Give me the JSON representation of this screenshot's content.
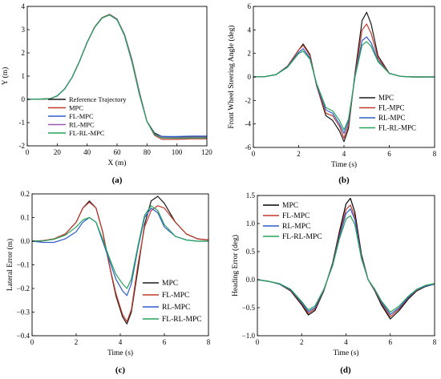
{
  "panels": [
    {
      "id": "a",
      "caption": "(a)",
      "chart_data": {
        "type": "line",
        "xlabel": "X (m)",
        "ylabel": "Y (m)",
        "xlim": [
          0,
          120
        ],
        "ylim": [
          -2,
          4
        ],
        "xticks": [
          0,
          20,
          40,
          60,
          80,
          100,
          120
        ],
        "yticks": [
          -2,
          -1,
          0,
          1,
          2,
          3,
          4
        ],
        "legend_position": "bottom-left",
        "series": [
          {
            "name": "Reference Trajectory",
            "color": "#1a1a1a",
            "x": [
              0,
              15,
              20,
              25,
              30,
              35,
              40,
              45,
              50,
              55,
              60,
              65,
              70,
              75,
              80,
              85,
              90,
              100,
              110,
              120
            ],
            "y": [
              0,
              0.02,
              0.15,
              0.45,
              0.95,
              1.65,
              2.45,
              3.1,
              3.5,
              3.65,
              3.45,
              2.75,
              1.6,
              0.2,
              -0.95,
              -1.45,
              -1.6,
              -1.62,
              -1.62,
              -1.62
            ]
          },
          {
            "name": "MPC",
            "color": "#c0392b",
            "x": [
              0,
              15,
              20,
              25,
              30,
              35,
              40,
              45,
              50,
              55,
              60,
              65,
              70,
              75,
              80,
              85,
              90,
              100,
              110,
              120
            ],
            "y": [
              0,
              0.02,
              0.15,
              0.45,
              0.95,
              1.65,
              2.45,
              3.12,
              3.52,
              3.66,
              3.45,
              2.8,
              1.7,
              0.3,
              -0.95,
              -1.55,
              -1.72,
              -1.72,
              -1.7,
              -1.7
            ]
          },
          {
            "name": "FL-MPC",
            "color": "#2e5cc9",
            "x": [
              0,
              15,
              20,
              25,
              30,
              35,
              40,
              45,
              50,
              55,
              60,
              65,
              70,
              75,
              80,
              85,
              90,
              100,
              110,
              120
            ],
            "y": [
              0,
              0.02,
              0.15,
              0.45,
              0.95,
              1.65,
              2.45,
              3.1,
              3.5,
              3.64,
              3.44,
              2.78,
              1.66,
              0.26,
              -0.95,
              -1.5,
              -1.6,
              -1.6,
              -1.58,
              -1.58
            ]
          },
          {
            "name": "RL-MPC",
            "color": "#9b59b6",
            "x": [
              0,
              15,
              20,
              25,
              30,
              35,
              40,
              45,
              50,
              55,
              60,
              65,
              70,
              75,
              80,
              85,
              90,
              100,
              110,
              120
            ],
            "y": [
              0,
              0.02,
              0.15,
              0.45,
              0.95,
              1.65,
              2.45,
              3.1,
              3.5,
              3.63,
              3.43,
              2.76,
              1.63,
              0.23,
              -0.95,
              -1.5,
              -1.63,
              -1.64,
              -1.63,
              -1.63
            ]
          },
          {
            "name": "FL-RL-MPC",
            "color": "#27a35a",
            "x": [
              0,
              15,
              20,
              25,
              30,
              35,
              40,
              45,
              50,
              55,
              60,
              65,
              70,
              75,
              80,
              85,
              90,
              100,
              110,
              120
            ],
            "y": [
              0,
              0.02,
              0.15,
              0.45,
              0.95,
              1.65,
              2.45,
              3.1,
              3.5,
              3.63,
              3.42,
              2.75,
              1.62,
              0.22,
              -0.95,
              -1.52,
              -1.66,
              -1.67,
              -1.66,
              -1.66
            ]
          }
        ]
      }
    },
    {
      "id": "b",
      "caption": "(b)",
      "chart_data": {
        "type": "line",
        "xlabel": "Time (s)",
        "ylabel": "Front Wheel Steering Angle (deg)",
        "xlim": [
          0,
          8
        ],
        "ylim": [
          -6,
          6
        ],
        "xticks": [
          0,
          2,
          4,
          6,
          8
        ],
        "yticks": [
          -6,
          -4,
          -2,
          0,
          2,
          4,
          6
        ],
        "legend_position": "bottom-right",
        "series": [
          {
            "name": "MPC",
            "color": "#1a1a1a",
            "x": [
              0,
              0.5,
              1,
              1.5,
              2,
              2.2,
              2.5,
              2.8,
              3.2,
              3.5,
              3.8,
              4,
              4.2,
              4.5,
              4.8,
              5,
              5.2,
              5.5,
              6,
              6.5,
              7,
              8
            ],
            "y": [
              0,
              0.02,
              0.2,
              0.9,
              2.3,
              2.8,
              1.9,
              -0.8,
              -3.3,
              -3.7,
              -4.6,
              -5.5,
              -4.4,
              0.5,
              4.8,
              5.5,
              4.5,
              1.8,
              0.3,
              0.05,
              0,
              0
            ]
          },
          {
            "name": "FL-MPC",
            "color": "#c0392b",
            "x": [
              0,
              0.5,
              1,
              1.5,
              2,
              2.2,
              2.5,
              2.8,
              3.2,
              3.5,
              3.8,
              4,
              4.2,
              4.5,
              4.8,
              5,
              5.2,
              5.5,
              6,
              6.5,
              7,
              8
            ],
            "y": [
              0,
              0.02,
              0.2,
              0.9,
              2.3,
              2.7,
              1.8,
              -0.8,
              -3.1,
              -3.3,
              -4.2,
              -5.2,
              -4.1,
              0.3,
              4.0,
              4.5,
              3.7,
              1.6,
              0.3,
              0.05,
              0,
              0
            ]
          },
          {
            "name": "RL-MPC",
            "color": "#2e5cc9",
            "x": [
              0,
              0.5,
              1,
              1.5,
              2,
              2.2,
              2.5,
              2.8,
              3.2,
              3.5,
              3.8,
              4,
              4.2,
              4.5,
              4.8,
              5,
              5.2,
              5.5,
              6,
              6.5,
              7,
              8
            ],
            "y": [
              0,
              0.02,
              0.2,
              0.85,
              2.1,
              2.4,
              1.6,
              -0.7,
              -2.8,
              -3.1,
              -4.0,
              -4.8,
              -3.8,
              0.2,
              3.1,
              3.4,
              2.9,
              1.4,
              0.3,
              0.05,
              0,
              0
            ]
          },
          {
            "name": "FL-RL-MPC",
            "color": "#27a35a",
            "x": [
              0,
              0.5,
              1,
              1.5,
              2,
              2.2,
              2.5,
              2.8,
              3.2,
              3.5,
              3.8,
              4,
              4.2,
              4.5,
              4.8,
              5,
              5.2,
              5.5,
              6,
              6.5,
              7,
              8
            ],
            "y": [
              0,
              0.02,
              0.2,
              0.8,
              2.0,
              2.2,
              1.5,
              -0.6,
              -2.6,
              -2.9,
              -3.7,
              -4.5,
              -3.6,
              0.1,
              2.7,
              3.0,
              2.6,
              1.3,
              0.3,
              0.05,
              0,
              0
            ]
          }
        ]
      }
    },
    {
      "id": "c",
      "caption": "(c)",
      "chart_data": {
        "type": "line",
        "xlabel": "Time (s)",
        "ylabel": "Lateral Error (m)",
        "xlim": [
          0,
          8
        ],
        "ylim": [
          -0.4,
          0.2
        ],
        "xticks": [
          0,
          2,
          4,
          6,
          8
        ],
        "yticks": [
          -0.4,
          -0.3,
          -0.2,
          -0.1,
          0,
          0.1,
          0.2
        ],
        "yticklabels": [
          "−0.4",
          "−0.3",
          "−0.2",
          "−0.1",
          "0.0",
          "0.1",
          "0.2"
        ],
        "legend_position": "bottom-right",
        "series": [
          {
            "name": "MPC",
            "color": "#1a1a1a",
            "x": [
              0,
              0.5,
              1,
              1.5,
              2,
              2.3,
              2.6,
              2.9,
              3.2,
              3.5,
              3.8,
              4.1,
              4.3,
              4.5,
              4.8,
              5.1,
              5.4,
              5.7,
              6,
              6.5,
              7,
              7.5,
              8
            ],
            "y": [
              0,
              0.002,
              0.01,
              0.03,
              0.08,
              0.14,
              0.17,
              0.14,
              0.04,
              -0.1,
              -0.23,
              -0.32,
              -0.35,
              -0.3,
              -0.12,
              0.07,
              0.17,
              0.19,
              0.16,
              0.08,
              0.03,
              0.01,
              0.005
            ]
          },
          {
            "name": "FL-MPC",
            "color": "#c0392b",
            "x": [
              0,
              0.5,
              1,
              1.5,
              2,
              2.3,
              2.6,
              2.9,
              3.2,
              3.5,
              3.8,
              4.1,
              4.3,
              4.5,
              4.8,
              5.1,
              5.4,
              5.7,
              6,
              6.5,
              7,
              7.5,
              8
            ],
            "y": [
              0,
              0.002,
              0.01,
              0.03,
              0.08,
              0.14,
              0.165,
              0.14,
              0.04,
              -0.1,
              -0.22,
              -0.31,
              -0.34,
              -0.29,
              -0.1,
              0.06,
              0.13,
              0.15,
              0.14,
              0.08,
              0.03,
              0.01,
              0.005
            ]
          },
          {
            "name": "RL-MPC",
            "color": "#2e5cc9",
            "x": [
              0,
              0.5,
              1,
              1.5,
              2,
              2.3,
              2.6,
              2.9,
              3.2,
              3.5,
              3.8,
              4.1,
              4.3,
              4.5,
              4.8,
              5.1,
              5.4,
              5.7,
              6,
              6.5,
              7,
              7.5,
              8
            ],
            "y": [
              0,
              -0.005,
              -0.005,
              0.01,
              0.04,
              0.08,
              0.1,
              0.08,
              0,
              -0.08,
              -0.16,
              -0.21,
              -0.23,
              -0.18,
              -0.03,
              0.1,
              0.14,
              0.12,
              0.06,
              0.02,
              0.005,
              0,
              0
            ]
          },
          {
            "name": "FL-RL-MPC",
            "color": "#27a35a",
            "x": [
              0,
              0.5,
              1,
              1.5,
              2,
              2.3,
              2.6,
              2.9,
              3.2,
              3.5,
              3.8,
              4.1,
              4.3,
              4.5,
              4.8,
              5.1,
              5.4,
              5.7,
              6,
              6.5,
              7,
              7.5,
              8
            ],
            "y": [
              0,
              0.001,
              0.008,
              0.025,
              0.06,
              0.09,
              0.1,
              0.08,
              0.01,
              -0.07,
              -0.14,
              -0.18,
              -0.2,
              -0.16,
              -0.02,
              0.11,
              0.15,
              0.13,
              0.07,
              0.02,
              0.005,
              0,
              0
            ]
          }
        ]
      }
    },
    {
      "id": "d",
      "caption": "(d)",
      "chart_data": {
        "type": "line",
        "xlabel": "Time (s)",
        "ylabel": "Heading Error (deg)",
        "xlim": [
          0,
          8
        ],
        "ylim": [
          -1.0,
          1.5
        ],
        "xticks": [
          0,
          2,
          4,
          6,
          8
        ],
        "yticks": [
          -1.0,
          -0.5,
          0,
          0.5,
          1.0,
          1.5
        ],
        "yticklabels": [
          "−1.0",
          "−0.5",
          "0.0",
          "0.5",
          "1.0",
          "1.5"
        ],
        "legend_position": "top-left",
        "series": [
          {
            "name": "MPC",
            "color": "#000000",
            "x": [
              0,
              0.5,
              1,
              1.5,
              2,
              2.3,
              2.6,
              3,
              3.4,
              3.7,
              4,
              4.2,
              4.4,
              4.7,
              5,
              5.3,
              5.6,
              6,
              6.4,
              6.8,
              7.2,
              7.6,
              8
            ],
            "y": [
              0,
              -0.03,
              -0.08,
              -0.2,
              -0.45,
              -0.63,
              -0.55,
              -0.2,
              0.3,
              0.85,
              1.35,
              1.45,
              1.2,
              0.45,
              0,
              -0.2,
              -0.45,
              -0.7,
              -0.55,
              -0.35,
              -0.2,
              -0.12,
              -0.08
            ]
          },
          {
            "name": "FL-MPC",
            "color": "#c0392b",
            "x": [
              0,
              0.5,
              1,
              1.5,
              2,
              2.3,
              2.6,
              3,
              3.4,
              3.7,
              4,
              4.2,
              4.4,
              4.7,
              5,
              5.3,
              5.6,
              6,
              6.4,
              6.8,
              7.2,
              7.6,
              8
            ],
            "y": [
              0,
              -0.03,
              -0.08,
              -0.19,
              -0.43,
              -0.6,
              -0.52,
              -0.19,
              0.28,
              0.8,
              1.25,
              1.33,
              1.12,
              0.42,
              0,
              -0.19,
              -0.42,
              -0.66,
              -0.52,
              -0.33,
              -0.19,
              -0.11,
              -0.08
            ]
          },
          {
            "name": "RL-MPC",
            "color": "#2e5cc9",
            "x": [
              0,
              0.5,
              1,
              1.5,
              2,
              2.3,
              2.6,
              3,
              3.4,
              3.7,
              4,
              4.2,
              4.4,
              4.7,
              5,
              5.3,
              5.6,
              6,
              6.4,
              6.8,
              7.2,
              7.6,
              8
            ],
            "y": [
              0,
              -0.03,
              -0.08,
              -0.18,
              -0.41,
              -0.57,
              -0.5,
              -0.18,
              0.27,
              0.76,
              1.18,
              1.26,
              1.07,
              0.4,
              0,
              -0.18,
              -0.4,
              -0.62,
              -0.5,
              -0.32,
              -0.18,
              -0.11,
              -0.08
            ]
          },
          {
            "name": "FL-RL-MPC",
            "color": "#27a35a",
            "x": [
              0,
              0.5,
              1,
              1.5,
              2,
              2.3,
              2.6,
              3,
              3.4,
              3.7,
              4,
              4.2,
              4.4,
              4.7,
              5,
              5.3,
              5.6,
              6,
              6.4,
              6.8,
              7.2,
              7.6,
              8
            ],
            "y": [
              0,
              -0.03,
              -0.07,
              -0.17,
              -0.39,
              -0.54,
              -0.47,
              -0.17,
              0.25,
              0.72,
              1.08,
              1.14,
              0.98,
              0.37,
              0,
              -0.17,
              -0.38,
              -0.58,
              -0.47,
              -0.3,
              -0.17,
              -0.1,
              -0.07
            ]
          }
        ]
      }
    }
  ]
}
